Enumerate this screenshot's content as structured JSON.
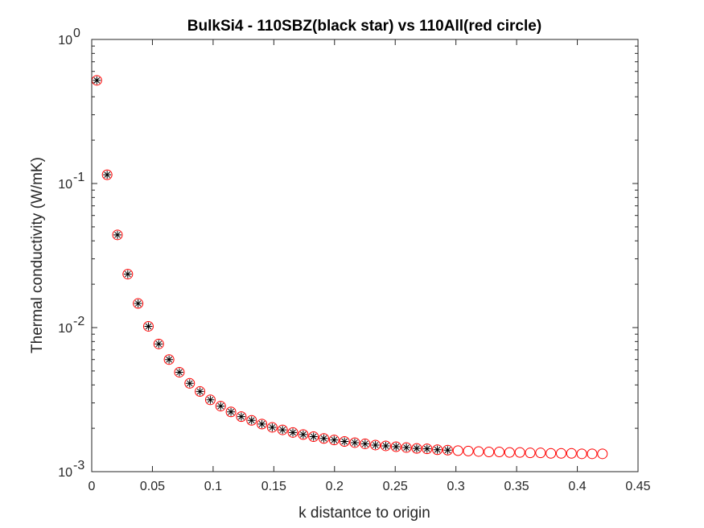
{
  "chart_data": {
    "type": "scatter",
    "title": "BulkSi4 - 110SBZ(black star) vs 110All(red circle)",
    "xlabel": "k distantce to origin",
    "ylabel": "Thermal conductivity (W/mK)",
    "xlim": [
      0,
      0.45
    ],
    "ylim": [
      0.001,
      1
    ],
    "yscale": "log",
    "grid": false,
    "xticks": [
      "0",
      "0.05",
      "0.1",
      "0.15",
      "0.2",
      "0.25",
      "0.3",
      "0.35",
      "0.4",
      "0.45"
    ],
    "xtick_values": [
      0,
      0.05,
      0.1,
      0.15,
      0.2,
      0.25,
      0.3,
      0.35,
      0.4,
      0.45
    ],
    "yticks": [
      {
        "base": "10",
        "exp": "-3",
        "value": 0.001
      },
      {
        "base": "10",
        "exp": "-2",
        "value": 0.01
      },
      {
        "base": "10",
        "exp": "-1",
        "value": 0.1
      },
      {
        "base": "10",
        "exp": "0",
        "value": 1
      }
    ],
    "series": [
      {
        "marker": "circle",
        "color": "#ff0000",
        "x": [
          0.0042,
          0.0127,
          0.0212,
          0.0297,
          0.0382,
          0.0467,
          0.0552,
          0.0637,
          0.0722,
          0.0807,
          0.0892,
          0.0977,
          0.1062,
          0.1147,
          0.1232,
          0.1317,
          0.1402,
          0.1487,
          0.1572,
          0.1657,
          0.1742,
          0.1827,
          0.1912,
          0.1997,
          0.2082,
          0.2167,
          0.2252,
          0.2337,
          0.2422,
          0.2507,
          0.2592,
          0.2677,
          0.2762,
          0.2847,
          0.2932,
          0.3017,
          0.3102,
          0.3187,
          0.3272,
          0.3357,
          0.3442,
          0.3527,
          0.3612,
          0.3697,
          0.3782,
          0.3867,
          0.3952,
          0.4037,
          0.4122,
          0.4207
        ],
        "y": [
          0.52,
          0.115,
          0.044,
          0.0235,
          0.0147,
          0.0102,
          0.0077,
          0.006,
          0.0049,
          0.0041,
          0.0036,
          0.00315,
          0.00285,
          0.0026,
          0.00241,
          0.00227,
          0.00214,
          0.00203,
          0.00195,
          0.00187,
          0.00181,
          0.00175,
          0.0017,
          0.00166,
          0.00162,
          0.00159,
          0.00156,
          0.00153,
          0.00151,
          0.00149,
          0.00147,
          0.00145,
          0.00144,
          0.00142,
          0.00141,
          0.0014,
          0.00139,
          0.00138,
          0.00137,
          0.00137,
          0.00136,
          0.00136,
          0.00135,
          0.00135,
          0.00134,
          0.00134,
          0.00134,
          0.00133,
          0.00133,
          0.00133
        ]
      },
      {
        "marker": "star",
        "color": "#000000",
        "x": [
          0.0042,
          0.0127,
          0.0212,
          0.0297,
          0.0382,
          0.0467,
          0.0552,
          0.0637,
          0.0722,
          0.0807,
          0.0892,
          0.0977,
          0.1062,
          0.1147,
          0.1232,
          0.1317,
          0.1402,
          0.1487,
          0.1572,
          0.1657,
          0.1742,
          0.1827,
          0.1912,
          0.1997,
          0.2082,
          0.2167,
          0.2252,
          0.2337,
          0.2422,
          0.2507,
          0.2592,
          0.2677,
          0.2762,
          0.2847,
          0.2932
        ],
        "y": [
          0.52,
          0.115,
          0.044,
          0.0235,
          0.0147,
          0.0102,
          0.0077,
          0.006,
          0.0049,
          0.0041,
          0.0036,
          0.00315,
          0.00285,
          0.0026,
          0.00241,
          0.00227,
          0.00214,
          0.00203,
          0.00195,
          0.00187,
          0.00181,
          0.00175,
          0.0017,
          0.00166,
          0.00162,
          0.00159,
          0.00156,
          0.00153,
          0.00151,
          0.00149,
          0.00147,
          0.00145,
          0.00144,
          0.00142,
          0.00141
        ]
      }
    ]
  }
}
